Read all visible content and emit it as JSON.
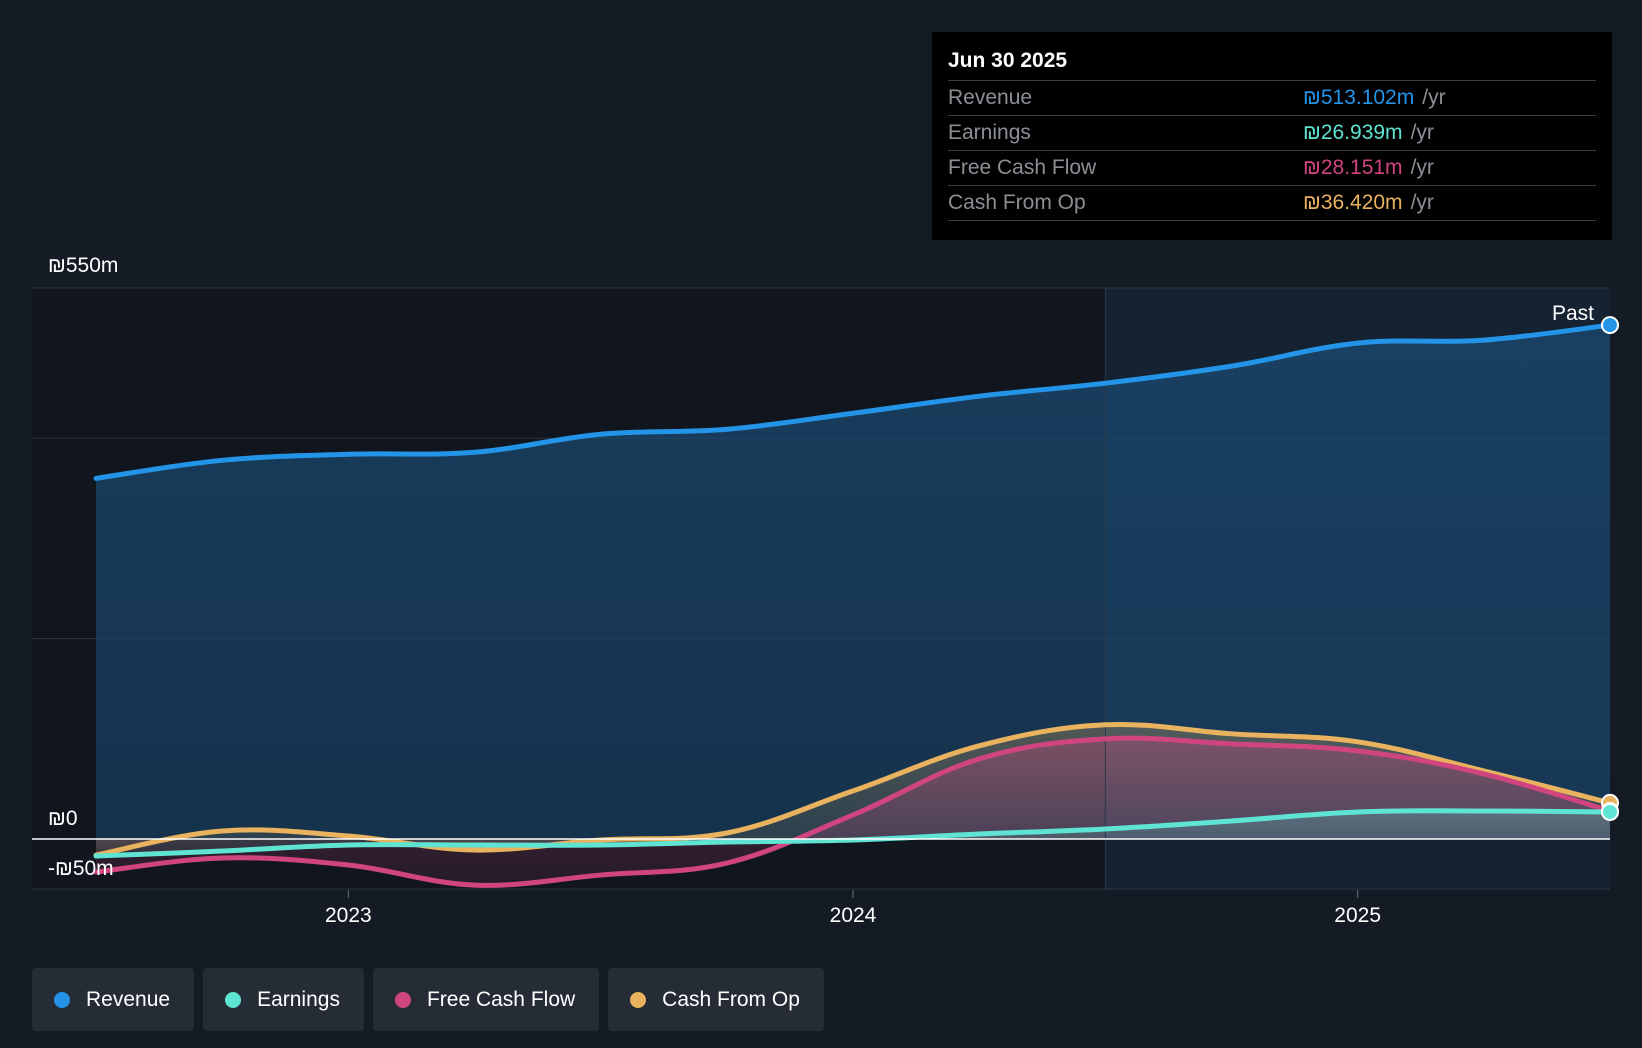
{
  "colors": {
    "revenue": "#2394e7",
    "earnings": "#5fe3d2",
    "free_cash_flow": "#d0457f",
    "cash_from_op": "#e9b25e",
    "background": "#151b24"
  },
  "tooltip": {
    "date": "Jun 30 2025",
    "rows": [
      {
        "label": "Revenue",
        "value": "₪513.102m",
        "unit": "/yr"
      },
      {
        "label": "Earnings",
        "value": "₪26.939m",
        "unit": "/yr"
      },
      {
        "label": "Free Cash Flow",
        "value": "₪28.151m",
        "unit": "/yr"
      },
      {
        "label": "Cash From Op",
        "value": "₪36.420m",
        "unit": "/yr"
      }
    ]
  },
  "past_label": "Past",
  "legend": [
    {
      "label": "Revenue",
      "color_key": "revenue"
    },
    {
      "label": "Earnings",
      "color_key": "earnings"
    },
    {
      "label": "Free Cash Flow",
      "color_key": "free_cash_flow"
    },
    {
      "label": "Cash From Op",
      "color_key": "cash_from_op"
    }
  ],
  "chart_data": {
    "type": "area",
    "title": "",
    "unit": "₪m",
    "ylim": [
      -50,
      550
    ],
    "y_tick_labels": [
      {
        "value": 550,
        "label": "₪550m"
      },
      {
        "value": 0,
        "label": "₪0"
      },
      {
        "value": -50,
        "label": "-₪50m"
      }
    ],
    "y_gridlines": [
      550,
      400,
      200,
      0,
      -50
    ],
    "xlim": [
      2022.5,
      2025.5
    ],
    "x_ticks": [
      {
        "value": 2023.0,
        "label": "2023"
      },
      {
        "value": 2024.0,
        "label": "2024"
      },
      {
        "value": 2025.0,
        "label": "2025"
      }
    ],
    "past_boundary_x": 2024.5,
    "x": [
      2022.5,
      2022.75,
      2023.0,
      2023.25,
      2023.5,
      2023.75,
      2024.0,
      2024.25,
      2024.5,
      2024.75,
      2025.0,
      2025.25,
      2025.5
    ],
    "series": [
      {
        "name": "Revenue",
        "key": "revenue",
        "values": [
          360,
          378,
          384,
          386,
          404,
          409,
          425,
          442,
          455,
          472,
          495,
          498,
          513
        ]
      },
      {
        "name": "Earnings",
        "key": "earnings",
        "values": [
          -17,
          -12,
          -6,
          -6,
          -6,
          -3,
          -1,
          5,
          10,
          18,
          27,
          28,
          27
        ]
      },
      {
        "name": "Free Cash Flow",
        "key": "free_cash_flow",
        "values": [
          -33,
          -19,
          -26,
          -46,
          -36,
          -24,
          24,
          80,
          100,
          95,
          88,
          65,
          28
        ]
      },
      {
        "name": "Cash From Op",
        "key": "cash_from_op",
        "values": [
          -16,
          8,
          3,
          -11,
          -1,
          6,
          48,
          93,
          114,
          105,
          97,
          68,
          36
        ]
      }
    ]
  }
}
